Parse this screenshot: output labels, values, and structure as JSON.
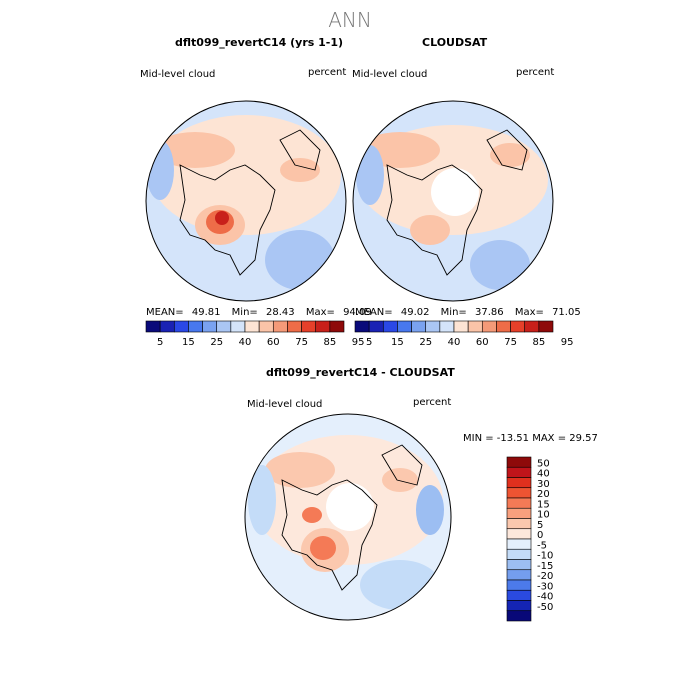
{
  "main_title": "ANN",
  "panels": {
    "model": {
      "title": "dflt099_revertC14 (yrs 1-1)",
      "left_label": "Mid-level cloud",
      "right_label": "percent",
      "stats": {
        "mean_label": "MEAN=",
        "mean": "49.81",
        "min_label": "Min=",
        "min": "28.43",
        "max_label": "Max=",
        "max": "94.09"
      }
    },
    "obs": {
      "title": "CLOUDSAT",
      "left_label": "Mid-level cloud",
      "right_label": "percent",
      "stats": {
        "mean_label": "MEAN=",
        "mean": "49.02",
        "min_label": "Min=",
        "min": "37.86",
        "max_label": "Max=",
        "max": "71.05"
      }
    },
    "diff": {
      "title": "dflt099_revertC14 - CLOUDSAT",
      "left_label": "Mid-level cloud",
      "right_label": "percent",
      "stats_text": "MIN = -13.51 MAX =  29.57"
    }
  },
  "colorbar_abs": {
    "labels": [
      "5",
      "15",
      "25",
      "40",
      "60",
      "75",
      "85",
      "95"
    ],
    "colors": [
      "#0a0a7a",
      "#1a22b4",
      "#2a48e6",
      "#4878ee",
      "#7aa2f0",
      "#aac6f4",
      "#d4e4fa",
      "#fde4d4",
      "#fbc4a8",
      "#f59a78",
      "#ee6c48",
      "#e6402a",
      "#c8201a",
      "#8e0a0a"
    ]
  },
  "colorbar_diff": {
    "labels": [
      "50",
      "40",
      "30",
      "20",
      "15",
      "10",
      "5",
      "0",
      "-5",
      "-10",
      "-15",
      "-20",
      "-30",
      "-40",
      "-50"
    ],
    "colors": [
      "#8e0a0a",
      "#c0141a",
      "#e0301e",
      "#ee5432",
      "#f47a56",
      "#f8a07e",
      "#fbc8ae",
      "#fde8dc",
      "#e4effc",
      "#c4dcf8",
      "#9cbef2",
      "#749eee",
      "#4c7aea",
      "#2a4ae0",
      "#1424b4",
      "#080878"
    ]
  },
  "chart_data": {
    "type": "heatmap",
    "title": "ANN",
    "projection": "north polar stereographic",
    "panels": [
      {
        "name": "dflt099_revertC14 (yrs 1-1)",
        "field": "Mid-level cloud",
        "units": "percent",
        "mean": 49.81,
        "min": 28.43,
        "max": 94.09
      },
      {
        "name": "CLOUDSAT",
        "field": "Mid-level cloud",
        "units": "percent",
        "mean": 49.02,
        "min": 37.86,
        "max": 71.05
      },
      {
        "name": "dflt099_revertC14 - CLOUDSAT",
        "field": "Mid-level cloud",
        "units": "percent",
        "min": -13.51,
        "max": 29.57
      }
    ],
    "contour_levels_abs": [
      5,
      10,
      15,
      20,
      25,
      30,
      40,
      50,
      60,
      70,
      75,
      80,
      85,
      90,
      95
    ],
    "contour_levels_diff": [
      -50,
      -40,
      -30,
      -20,
      -15,
      -10,
      -5,
      0,
      5,
      10,
      15,
      20,
      30,
      40,
      50
    ]
  }
}
